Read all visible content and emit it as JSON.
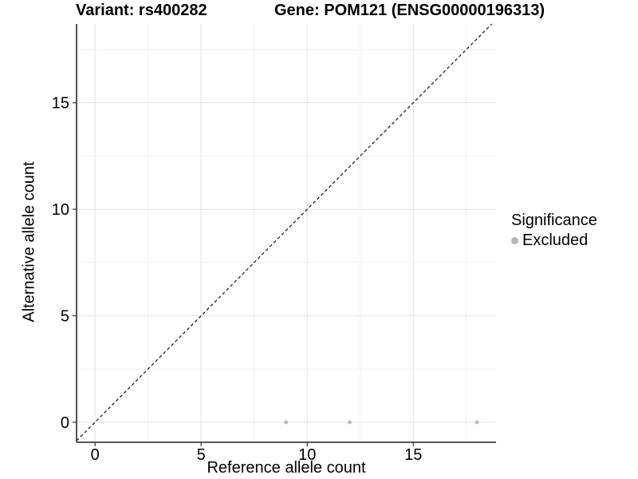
{
  "titles": {
    "variant": "Variant: rs400282",
    "gene": "Gene: POM121 (ENSG00000196313)"
  },
  "legend": {
    "title": "Significance",
    "items": [
      {
        "label": "Excluded",
        "color": "#b5b5b5"
      }
    ]
  },
  "chart_data": {
    "type": "scatter",
    "title": "Variant: rs400282   Gene: POM121 (ENSG00000196313)",
    "xlabel": "Reference allele count",
    "ylabel": "Alternative allele count",
    "xlim": [
      -0.87,
      18.9
    ],
    "ylim": [
      -0.94,
      18.7
    ],
    "x_ticks": [
      0,
      5,
      10,
      15
    ],
    "y_ticks": [
      0,
      5,
      10,
      15
    ],
    "x_minor_ticks": [
      2.5,
      7.5,
      12.5,
      17.5
    ],
    "y_minor_ticks": [
      2.5,
      7.5,
      12.5,
      17.5
    ],
    "grid": true,
    "legend_position": "right",
    "series": [
      {
        "name": "Excluded",
        "color": "#bdbdbd",
        "point_radius": 2.5,
        "points": [
          [
            9,
            0
          ],
          [
            12,
            0
          ],
          [
            18,
            0
          ]
        ]
      }
    ],
    "reference_line": {
      "type": "identity",
      "slope": 1,
      "intercept": 0,
      "style": "dashed",
      "color": "#111111"
    }
  },
  "style": {
    "grid_major_color": "#e4e4e4",
    "grid_minor_color": "#f1f1f1",
    "axis_line_left_color": "#1a1a1a",
    "axis_line_bottom_color": "#555555",
    "tick_color": "#333333",
    "tick_label_color": "#000000",
    "panel_background": "#ffffff"
  }
}
